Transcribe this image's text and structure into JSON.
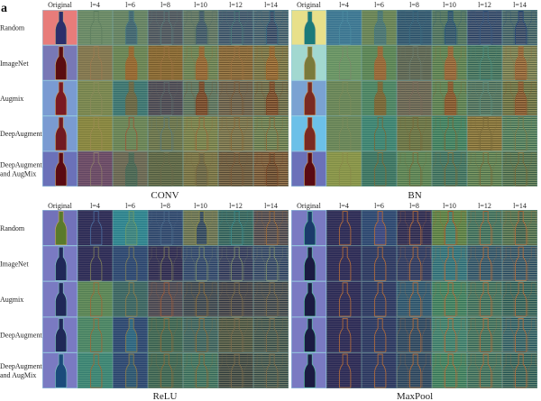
{
  "figure_label": "a",
  "columns": [
    "Original",
    "l=4",
    "l=6",
    "l=8",
    "l=10",
    "l=12",
    "l=14"
  ],
  "row_labels": [
    [
      "Random"
    ],
    [
      "ImageNet"
    ],
    [
      "Augmix"
    ],
    [
      "DeepAugment"
    ],
    [
      "DeepAugment",
      "and AugMix"
    ]
  ],
  "cell_format": [
    "background",
    "bottle_fill",
    "bottle_outline"
  ],
  "panels": [
    {
      "name": "CONV",
      "rows": [
        [
          [
            "#e87c7a",
            "#2b2f6b",
            "#c0a080"
          ],
          [
            "#6b8f6c",
            null,
            "#5f7f60"
          ],
          [
            "#66896a",
            "#3f6b7a",
            "#4a7a80"
          ],
          [
            "#4d5b69",
            null,
            "#5a7a7a"
          ],
          [
            "#5e7d6e",
            "#3b5d76",
            "#4a6a6a"
          ],
          [
            "#375a7c",
            null,
            "#4a7a7a"
          ],
          [
            "#3c6783",
            "#2b4c7a",
            "#3a6a80"
          ]
        ],
        [
          [
            "#7878b6",
            "#5a0c10",
            "#c0a070"
          ],
          [
            "#857a52",
            null,
            "#9a7a50"
          ],
          [
            "#6a8a5a",
            "#9a6b32",
            "#9a6b32"
          ],
          [
            "#8a6a32",
            null,
            "#9a7040"
          ],
          [
            "#6b8b5b",
            "#9a6a34",
            "#9a6a34"
          ],
          [
            "#8b6a38",
            null,
            "#9a7040"
          ],
          [
            "#7a7c4c",
            "#9b6a30",
            "#9b6a30"
          ]
        ],
        [
          [
            "#7a9bd2",
            "#7a1a22",
            "#c0a070"
          ],
          [
            "#7a8a52",
            null,
            "#8a8a5a"
          ],
          [
            "#3b7b7a",
            "#6a6a48",
            "#6a6a48"
          ],
          [
            "#4a4c5c",
            null,
            "#5a6a6a"
          ],
          [
            "#5b7b68",
            "#7a4a2c",
            "#7a4a2c"
          ],
          [
            "#6a6452",
            null,
            "#7a5a3a"
          ],
          [
            "#6b7252",
            "#7b4a2a",
            "#7b4a2a"
          ]
        ],
        [
          [
            "#7a9bd2",
            "#711a22",
            "#c0a070"
          ],
          [
            "#8a8a42",
            null,
            "#9a8a50"
          ],
          [
            "#6a8a5c",
            null,
            "#9a5a3a"
          ],
          [
            "#6a7a52",
            null,
            "#5a7a7a"
          ],
          [
            "#7a8a52",
            null,
            "#9a6a3a"
          ],
          [
            "#7a7a52",
            null,
            "#8a6a3a"
          ],
          [
            "#6a8a5c",
            null,
            "#8a6a3a"
          ]
        ],
        [
          [
            "#6b71b9",
            "#5a0a12",
            "#c0a070"
          ],
          [
            "#6c4c6c",
            null,
            "#8a7a6a"
          ],
          [
            "#6c6c5a",
            "#4a6b5a",
            "#4a6b5a"
          ],
          [
            "#5b6a4a",
            null,
            "#6a6a4a"
          ],
          [
            "#7a7a4a",
            "#6a6a4a",
            "#7a6a40"
          ],
          [
            "#6a5c42",
            null,
            "#7a5a3a"
          ],
          [
            "#7a5c3c",
            "#6a4a30",
            "#7a4a2a"
          ]
        ]
      ]
    },
    {
      "name": "BN",
      "rows": [
        [
          [
            "#e8e08a",
            "#1b7a7a",
            "#c0c090"
          ],
          [
            "#3b7c9c",
            null,
            "#4a8aa0"
          ],
          [
            "#6a8a5c",
            "#4a7b7c",
            "#4a7b7c"
          ],
          [
            "#2c5b7b",
            null,
            "#3a6a80"
          ],
          [
            "#4c7b6a",
            "#2c5b7a",
            "#2c5b7a"
          ],
          [
            "#2b4b7b",
            null,
            "#3a5a80"
          ],
          [
            "#3b6b7b",
            "#2b4b7a",
            "#2b4b7a"
          ]
        ],
        [
          [
            "#a2d8d0",
            "#7a7a3a",
            "#c0b080"
          ],
          [
            "#6a9a6a",
            null,
            "#7a8a6a"
          ],
          [
            "#5b8b5c",
            "#9b6b3a",
            "#9b6b3a"
          ],
          [
            "#5c6a5a",
            null,
            "#6a7a6a"
          ],
          [
            "#5b8b5a",
            "#9b6a3a",
            "#9b6a3a"
          ],
          [
            "#3b7b6a",
            null,
            "#4a8a7a"
          ],
          [
            "#7a8a5a",
            "#9b6a3a",
            "#9b6a3a"
          ]
        ],
        [
          [
            "#7aa2d2",
            "#7a2a22",
            "#c0a070"
          ],
          [
            "#6a8a5c",
            null,
            "#7a8a5a"
          ],
          [
            "#4b8b6b",
            "#7a6a3a",
            "#7a6a3a"
          ],
          [
            "#6a6a5a",
            null,
            "#7a6a5a"
          ],
          [
            "#5b8b5b",
            "#8b5b30",
            "#8b5b30"
          ],
          [
            "#4b7b6b",
            null,
            "#5a8a7a"
          ],
          [
            "#6b7b4b",
            "#8b5a30",
            "#8b5a30"
          ]
        ],
        [
          [
            "#6cc0e8",
            "#7a2a22",
            "#c0a070"
          ],
          [
            "#6a8a5c",
            null,
            "#7a8a5a"
          ],
          [
            "#3b8b7b",
            null,
            "#7a6a3a"
          ],
          [
            "#6a7a4a",
            null,
            "#7a6a3a"
          ],
          [
            "#3b8b6b",
            null,
            "#7a6a3a"
          ],
          [
            "#8a7a3c",
            null,
            "#7a6a3a"
          ],
          [
            "#4b8b6b",
            null,
            "#7a7a4a"
          ]
        ],
        [
          [
            "#6b71b9",
            "#5a0a12",
            "#c0a070"
          ],
          [
            "#8a9a4c",
            null,
            "#8a8a4a"
          ],
          [
            "#3b7b6b",
            null,
            "#7a6a3a"
          ],
          [
            "#5b8b5b",
            null,
            "#7a6a3a"
          ],
          [
            "#3b7b6b",
            null,
            "#7a6a3a"
          ],
          [
            "#5b8b5b",
            null,
            "#7a6a3a"
          ],
          [
            "#4b7b5b",
            null,
            "#7a6a3a"
          ]
        ]
      ]
    },
    {
      "name": "ReLU",
      "rows": [
        [
          [
            "#7272ba",
            "#5a7a2a",
            "#c0a070"
          ],
          [
            "#2c2c5c",
            null,
            "#4a6a9a"
          ],
          [
            "#2b8b9b",
            "#3b8b8a",
            "#6a9a6a"
          ],
          [
            "#2b4b7b",
            null,
            "#4a6a8a"
          ],
          [
            "#6b7b5b",
            "#2b4b6b",
            "#8a8a4a"
          ],
          [
            "#2b6b6b",
            null,
            "#3a8a8a"
          ],
          [
            "#4b4b5b",
            null,
            "#9a6a3a"
          ]
        ],
        [
          [
            "#7a7ac2",
            "#202858",
            "#80c0c0"
          ],
          [
            "#2c2c5c",
            null,
            "#7a7a5a"
          ],
          [
            "#2b4b7b",
            null,
            "#7a7a5a"
          ],
          [
            "#2b2b5a",
            null,
            "#7a7a5a"
          ],
          [
            "#2b4b7b",
            null,
            "#7a8a6a"
          ],
          [
            "#2b3b6b",
            null,
            "#7a8a6a"
          ],
          [
            "#2b4b7b",
            null,
            "#7a8a6a"
          ]
        ],
        [
          [
            "#7a7ac2",
            "#202858",
            "#80c0c0"
          ],
          [
            "#5b8b5b",
            null,
            "#9a6a3a"
          ],
          [
            "#3b6b6b",
            null,
            "#8a7a4a"
          ],
          [
            "#4b4b5b",
            null,
            "#9a5a3a"
          ],
          [
            "#3b4b5b",
            null,
            "#8a6a3a"
          ],
          [
            "#3b4252",
            null,
            "#7a6a4a"
          ],
          [
            "#3b4b5b",
            null,
            "#7a6a4a"
          ]
        ],
        [
          [
            "#7a7ac2",
            "#202858",
            "#80c0c0"
          ],
          [
            "#4b8b6b",
            null,
            "#9a6a3a"
          ],
          [
            "#2b4b7b",
            "#2b6b8b",
            "#8a7a4a"
          ],
          [
            "#3b6b5b",
            null,
            "#8a6a3a"
          ],
          [
            "#3b6b6b",
            null,
            "#8a6a3a"
          ],
          [
            "#4b5b4b",
            null,
            "#7a6a4a"
          ],
          [
            "#3b5b5b",
            null,
            "#7a6a4a"
          ]
        ],
        [
          [
            "#7a7ac2",
            "#1b4b7b",
            "#80c0c0"
          ],
          [
            "#3b8b7b",
            null,
            "#9a6a3a"
          ],
          [
            "#2b4b7b",
            "#2b5b7b",
            "#8a7a4a"
          ],
          [
            "#3b6b5b",
            null,
            "#8a6a3a"
          ],
          [
            "#3b7b6b",
            null,
            "#8a6a3a"
          ],
          [
            "#3b4b4b",
            null,
            "#7a6a4a"
          ],
          [
            "#3b5b5b",
            null,
            "#7a6a4a"
          ]
        ]
      ]
    },
    {
      "name": "MaxPool",
      "rows": [
        [
          [
            "#7a7ac2",
            "#1b3b6b",
            "#5ac0a0"
          ],
          [
            "#2c2c5c",
            "#2c2c5c",
            "#b06a3a"
          ],
          [
            "#2b4b7b",
            "#3b4b8b",
            "#b06a3a"
          ],
          [
            "#2b2b5a",
            "#2b2b5a",
            "#b06a3a"
          ],
          [
            "#5b8b4b",
            "#3b8b7b",
            "#b05a2a"
          ],
          [
            "#3b7b6b",
            "#3b7b6b",
            "#b06a3a"
          ],
          [
            "#4b7b5b",
            "#3b6b5b",
            "#b06a3a"
          ]
        ],
        [
          [
            "#7a7ac2",
            "#1b1b42",
            "#5ac0a0"
          ],
          [
            "#2c2c5c",
            null,
            "#b06a3a"
          ],
          [
            "#2b3b6b",
            null,
            "#b06a3a"
          ],
          [
            "#2b3b6b",
            null,
            "#b06a3a"
          ],
          [
            "#2b7b8b",
            null,
            "#b06a3a"
          ],
          [
            "#2b5b7b",
            null,
            "#b06a3a"
          ],
          [
            "#2b5b7b",
            null,
            "#b06a3a"
          ]
        ],
        [
          [
            "#7a7ac2",
            "#1b1b42",
            "#5ac0a0"
          ],
          [
            "#2c2c5c",
            null,
            "#b06a3a"
          ],
          [
            "#2b3b6b",
            null,
            "#b06a3a"
          ],
          [
            "#2b5b7b",
            null,
            "#b06a3a"
          ],
          [
            "#3b8b6b",
            null,
            "#b06a3a"
          ],
          [
            "#3b7b6b",
            null,
            "#b06a3a"
          ],
          [
            "#2b6b6b",
            null,
            "#b06a3a"
          ]
        ],
        [
          [
            "#7a7ac2",
            "#1b1b42",
            "#5ac0a0"
          ],
          [
            "#2c2c5c",
            null,
            "#b06a3a"
          ],
          [
            "#2b3b6b",
            null,
            "#b06a3a"
          ],
          [
            "#2b4b6b",
            null,
            "#b06a3a"
          ],
          [
            "#3b8b7b",
            null,
            "#b06a3a"
          ],
          [
            "#3b7b6b",
            null,
            "#b06a3a"
          ],
          [
            "#2b6b7b",
            null,
            "#b06a3a"
          ]
        ],
        [
          [
            "#7a7ac2",
            "#1b1b42",
            "#5ac0a0"
          ],
          [
            "#2c2c5c",
            null,
            "#b06a3a"
          ],
          [
            "#2b3b6b",
            null,
            "#b06a3a"
          ],
          [
            "#2b4b6b",
            null,
            "#b06a3a"
          ],
          [
            "#3b8b6b",
            null,
            "#b06a3a"
          ],
          [
            "#3b7b6b",
            null,
            "#b06a3a"
          ],
          [
            "#2b6b6b",
            null,
            "#b06a3a"
          ]
        ]
      ]
    }
  ]
}
